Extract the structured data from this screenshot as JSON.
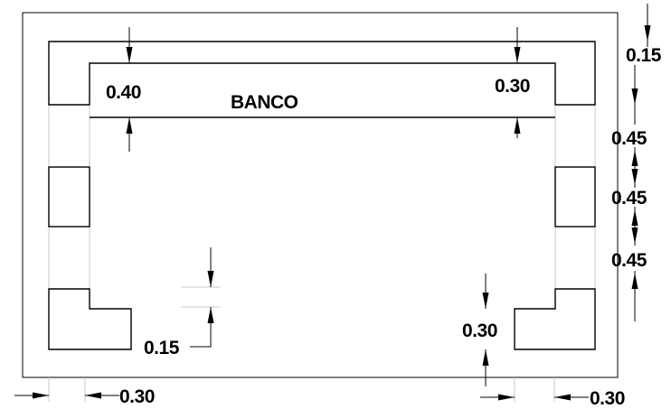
{
  "drawing": {
    "label": "BANCO",
    "dimensions": {
      "top_left_depth": "0.40",
      "top_right_depth": "0.30",
      "right_top": "0.15",
      "right_1": "0.45",
      "right_2": "0.45",
      "right_3": "0.45",
      "inner_small": "0.15",
      "bottom_right_vertical": "0.30",
      "bottom_left_horizontal": "0.30",
      "bottom_right_horizontal": "0.30"
    }
  }
}
